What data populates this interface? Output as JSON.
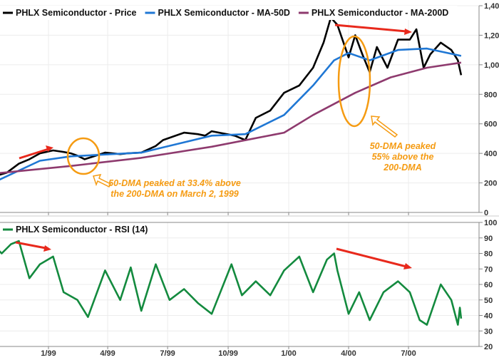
{
  "chart_data": [
    {
      "type": "line",
      "title": "",
      "xlabel": "",
      "ylabel": "",
      "ylim": [
        0,
        1400
      ],
      "yticks": [
        "0",
        "200",
        "400",
        "600",
        "800",
        "1,000",
        "1,200",
        "1,400"
      ],
      "grid": true,
      "legend_placement": "top-left",
      "legend": [
        "PHLX Semiconductor - Price",
        "PHLX Semiconductor - MA-50D",
        "PHLX Semiconductor - MA-200D"
      ],
      "series": [
        {
          "name": "PHLX Semiconductor - Price",
          "color": "#000000",
          "x": [
            "1998-10-15",
            "1998-10-30",
            "1998-11-17",
            "1998-12-03",
            "1998-12-19",
            "1999-01-08",
            "1999-01-24",
            "1999-02-04",
            "1999-02-14",
            "1999-02-25",
            "1999-03-28",
            "1999-04-20",
            "1999-05-01",
            "1999-05-22",
            "1999-06-13",
            "1999-06-24",
            "1999-07-26",
            "1999-08-16",
            "1999-08-27",
            "1999-09-06",
            "1999-10-11",
            "1999-10-27",
            "1999-11-12",
            "1999-12-04",
            "1999-12-25",
            "2000-01-17",
            "2000-02-07",
            "2000-02-23",
            "2000-03-05",
            "2000-03-15",
            "2000-04-01",
            "2000-04-11",
            "2000-04-22",
            "2000-05-03",
            "2000-05-14",
            "2000-05-30",
            "2000-06-15",
            "2000-07-03",
            "2000-07-13",
            "2000-07-24",
            "2000-08-03",
            "2000-08-19",
            "2000-09-04",
            "2000-09-14",
            "2000-09-19"
          ],
          "y": [
            250,
            270,
            330,
            360,
            400,
            420,
            410,
            400,
            385,
            360,
            405,
            395,
            400,
            405,
            450,
            490,
            540,
            530,
            520,
            550,
            520,
            490,
            640,
            690,
            810,
            860,
            980,
            1150,
            1320,
            1270,
            1050,
            1200,
            1070,
            950,
            1120,
            980,
            1170,
            1170,
            1240,
            980,
            1070,
            1150,
            1100,
            1030,
            930
          ]
        },
        {
          "name": "PHLX Semiconductor - MA-50D",
          "color": "#1f77d4",
          "x": [
            "1998-10-15",
            "1998-12-19",
            "1999-02-04",
            "1999-05-22",
            "1999-09-06",
            "1999-10-27",
            "1999-12-25",
            "2000-02-07",
            "2000-03-10",
            "2000-04-01",
            "2000-05-03",
            "2000-06-15",
            "2000-07-29",
            "2000-09-19"
          ],
          "y": [
            215,
            350,
            380,
            405,
            520,
            530,
            660,
            860,
            1030,
            1080,
            1030,
            1100,
            1110,
            1060
          ]
        },
        {
          "name": "PHLX Semiconductor - MA-200D",
          "color": "#8e3a6e",
          "x": [
            "1998-10-15",
            "1999-02-04",
            "1999-05-22",
            "1999-09-06",
            "1999-12-25",
            "2000-02-07",
            "2000-04-11",
            "2000-06-04",
            "2000-07-29",
            "2000-09-19"
          ],
          "y": [
            265,
            315,
            370,
            445,
            540,
            660,
            810,
            915,
            980,
            1015
          ]
        }
      ]
    },
    {
      "type": "line",
      "title": "",
      "xlabel": "",
      "ylabel": "",
      "ylim": [
        20,
        100
      ],
      "yticks": [
        "20",
        "30",
        "40",
        "50",
        "60",
        "70",
        "80",
        "90",
        "100"
      ],
      "xticks": [
        "1/99",
        "4/99",
        "7/99",
        "10/99",
        "1/00",
        "4/00",
        "7/00"
      ],
      "grid": true,
      "legend_placement": "top-left",
      "legend": [
        "PHLX Semiconductor - RSI (14)"
      ],
      "series": [
        {
          "name": "PHLX Semiconductor - RSI (14)",
          "color": "#138a3e",
          "x": [
            "1998-10-15",
            "1998-10-22",
            "1998-11-05",
            "1998-11-17",
            "1998-12-03",
            "1998-12-19",
            "1999-01-08",
            "1999-01-24",
            "1999-02-14",
            "1999-03-02",
            "1999-03-28",
            "1999-04-20",
            "1999-05-06",
            "1999-05-22",
            "1999-06-13",
            "1999-07-04",
            "1999-07-26",
            "1999-08-16",
            "1999-09-06",
            "1999-10-06",
            "1999-10-22",
            "1999-11-12",
            "1999-12-04",
            "1999-12-25",
            "2000-01-17",
            "2000-02-07",
            "2000-02-28",
            "2000-03-10",
            "2000-03-15",
            "2000-04-01",
            "2000-04-17",
            "2000-05-03",
            "2000-05-24",
            "2000-06-15",
            "2000-07-03",
            "2000-07-18",
            "2000-07-29",
            "2000-08-19",
            "2000-09-04",
            "2000-09-14",
            "2000-09-17",
            "2000-09-19"
          ],
          "y": [
            83,
            80,
            86,
            88,
            64,
            73,
            78,
            55,
            50,
            39,
            69,
            50,
            71,
            43,
            73,
            50,
            57,
            48,
            41,
            73,
            53,
            62,
            53,
            69,
            78,
            55,
            76,
            80,
            69,
            41,
            55,
            37,
            55,
            62,
            55,
            37,
            34,
            60,
            50,
            34,
            45,
            38
          ]
        }
      ]
    }
  ],
  "annotations": {
    "dma_1999_line1": "50-DMA peaked at 33.4% above",
    "dma_1999_line2": "the 200-DMA on March 2, 1999",
    "dma_2000_line1": "50-DMA peaked",
    "dma_2000_line2": "55% above the",
    "dma_2000_line3": "200-DMA",
    "arrow_color": "#e8291c",
    "highlight_color": "#f59b12"
  }
}
